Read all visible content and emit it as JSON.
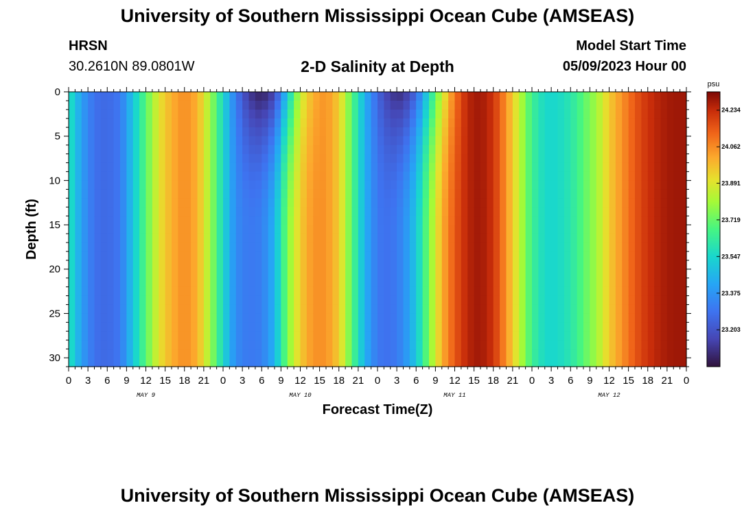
{
  "header": {
    "title": "University of Southern Mississippi Ocean Cube (AMSEAS)",
    "station": "HRSN",
    "coords": "30.2610N  89.0801W",
    "plot_title": "2-D Salinity at Depth",
    "start_label": "Model Start Time",
    "start_value": "05/09/2023 Hour 00"
  },
  "footer": {
    "title": "University of Southern Mississippi Ocean Cube (AMSEAS)"
  },
  "chart_data": {
    "type": "heatmap",
    "title": "2-D Salinity at Depth",
    "xlabel": "Forecast Time(Z)",
    "ylabel": "Depth (ft)",
    "x_tick_labels": [
      "0",
      "3",
      "6",
      "9",
      "12",
      "15",
      "18",
      "21",
      "0",
      "3",
      "6",
      "9",
      "12",
      "15",
      "18",
      "21",
      "0",
      "3",
      "6",
      "9",
      "12",
      "15",
      "18",
      "21",
      "0",
      "3",
      "6",
      "9",
      "12",
      "15",
      "18",
      "21",
      "0"
    ],
    "x_range_hours": [
      0,
      96
    ],
    "day_labels": [
      {
        "label": "MAY 9",
        "hour": 12
      },
      {
        "label": "MAY 10",
        "hour": 36
      },
      {
        "label": "MAY 11",
        "hour": 60
      },
      {
        "label": "MAY 12",
        "hour": 84
      }
    ],
    "y_ticks": [
      0,
      5,
      10,
      15,
      20,
      25,
      30
    ],
    "y_tick_labels": [
      "0",
      "5",
      "10",
      "15",
      "20",
      "25",
      "30"
    ],
    "y_range": [
      0,
      31
    ],
    "y_inverted": true,
    "colorbar": {
      "unit": "psu",
      "ticks": [
        24.234,
        24.062,
        23.891,
        23.719,
        23.547,
        23.375,
        23.203
      ],
      "tick_labels": [
        "24.234",
        "24.062",
        "23.891",
        "23.719",
        "23.547",
        "23.375",
        "23.203"
      ],
      "min": 23.03,
      "max": 24.32
    },
    "profile_hours": [
      0,
      2,
      4,
      6,
      8,
      10,
      12,
      14,
      16,
      18,
      20,
      22,
      24,
      26,
      28,
      30,
      32,
      34,
      36,
      38,
      40,
      42,
      44,
      46,
      48,
      50,
      52,
      54,
      56,
      58,
      60,
      62,
      64,
      66,
      68,
      70,
      72,
      74,
      76,
      78,
      80,
      82,
      84,
      86,
      88,
      90,
      92,
      94,
      96
    ],
    "salinity_surface": [
      23.6,
      23.4,
      23.28,
      23.26,
      23.3,
      23.5,
      23.7,
      23.9,
      24.0,
      24.06,
      24.0,
      23.8,
      23.55,
      23.3,
      23.12,
      23.06,
      23.15,
      23.5,
      23.85,
      24.0,
      24.05,
      23.95,
      23.7,
      23.45,
      23.25,
      23.12,
      23.1,
      23.25,
      23.55,
      23.85,
      24.1,
      24.25,
      24.28,
      24.22,
      24.05,
      23.85,
      23.65,
      23.55,
      23.55,
      23.6,
      23.7,
      23.8,
      23.95,
      24.05,
      24.15,
      24.22,
      24.26,
      24.28,
      24.28
    ],
    "salinity_bottom": [
      23.6,
      23.4,
      23.28,
      23.26,
      23.3,
      23.5,
      23.7,
      23.9,
      24.0,
      24.06,
      24.0,
      23.8,
      23.55,
      23.35,
      23.3,
      23.32,
      23.45,
      23.75,
      23.95,
      24.05,
      24.05,
      23.95,
      23.7,
      23.45,
      23.3,
      23.28,
      23.35,
      23.5,
      23.75,
      24.0,
      24.15,
      24.25,
      24.28,
      24.22,
      24.05,
      23.85,
      23.65,
      23.55,
      23.55,
      23.6,
      23.7,
      23.8,
      23.95,
      24.05,
      24.15,
      24.22,
      24.26,
      24.28,
      24.28
    ]
  }
}
